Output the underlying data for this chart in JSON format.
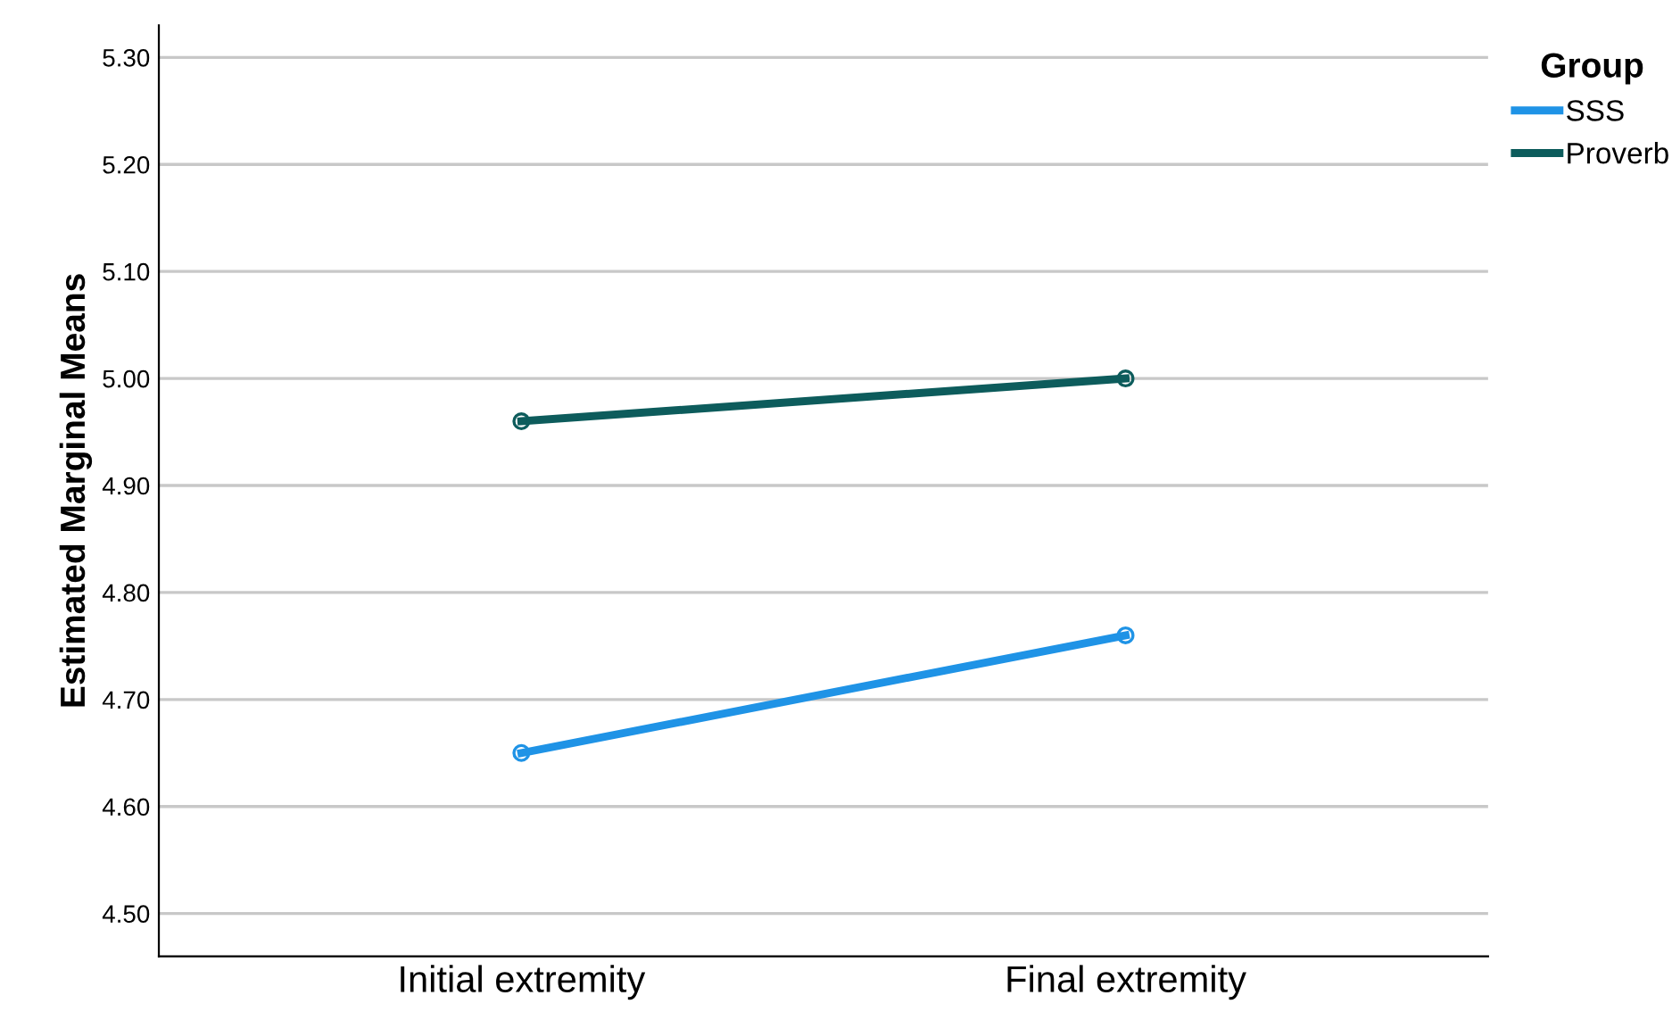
{
  "chart_data": {
    "type": "line",
    "ylabel": "Estimated Marginal Means",
    "legend_title": "Group",
    "categories": [
      "Initial extremity",
      "Final extremity"
    ],
    "series": [
      {
        "name": "SSS",
        "color": "#1f93e6",
        "values": [
          4.65,
          4.76
        ]
      },
      {
        "name": "Proverb",
        "color": "#0d5c5c",
        "values": [
          4.96,
          5.0
        ]
      }
    ],
    "ylim": [
      4.46,
      5.33
    ],
    "yticks": [
      {
        "value": 4.5,
        "label": "4.50"
      },
      {
        "value": 4.6,
        "label": "4.60"
      },
      {
        "value": 4.7,
        "label": "4.70"
      },
      {
        "value": 4.8,
        "label": "4.80"
      },
      {
        "value": 4.9,
        "label": "4.90"
      },
      {
        "value": 5.0,
        "label": "5.00"
      },
      {
        "value": 5.1,
        "label": "5.10"
      },
      {
        "value": 5.2,
        "label": "5.20"
      },
      {
        "value": 5.3,
        "label": "5.30"
      }
    ],
    "grid": "y",
    "legend": "top right",
    "marker": "circle",
    "line_style": "solid"
  }
}
